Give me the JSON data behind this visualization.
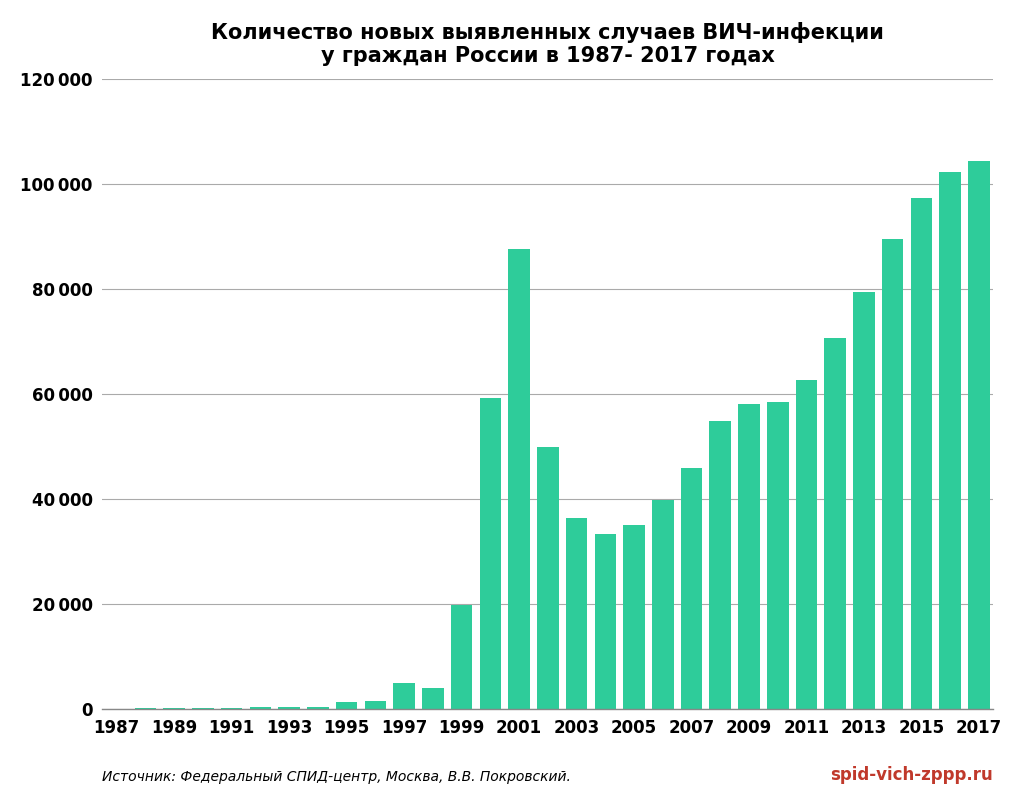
{
  "title": "Количество новых выявленных случаев ВИЧ-инфекции\nу граждан России в 1987- 2017 годах",
  "years": [
    1987,
    1988,
    1989,
    1990,
    1991,
    1992,
    1993,
    1994,
    1995,
    1996,
    1997,
    1998,
    1999,
    2000,
    2001,
    2002,
    2003,
    2004,
    2005,
    2006,
    2007,
    2008,
    2009,
    2010,
    2011,
    2012,
    2013,
    2014,
    2015,
    2016,
    2017
  ],
  "values": [
    100,
    150,
    200,
    250,
    300,
    350,
    400,
    500,
    1400,
    1500,
    4900,
    4000,
    19758,
    59261,
    87671,
    49923,
    36446,
    33410,
    35116,
    39848,
    45819,
    54938,
    58150,
    58448,
    62581,
    70739,
    79420,
    89475,
    97227,
    102196,
    104402
  ],
  "bar_color": "#2ECC9A",
  "background_color": "#ffffff",
  "ylim": [
    0,
    120000
  ],
  "ytick_labels": [
    "0",
    "20000",
    "40000",
    "60000",
    "80000",
    "100000",
    "120000"
  ],
  "ytick_values": [
    0,
    20000,
    40000,
    60000,
    80000,
    100000,
    120000
  ],
  "source_text": "Источник: Федеральный СПИД-центр, Москва, В.В. Покровский.",
  "watermark_text": "spid-vich-zppp.ru",
  "title_fontsize": 15,
  "tick_fontsize": 12,
  "source_fontsize": 10,
  "watermark_fontsize": 12,
  "bar_width": 0.75
}
